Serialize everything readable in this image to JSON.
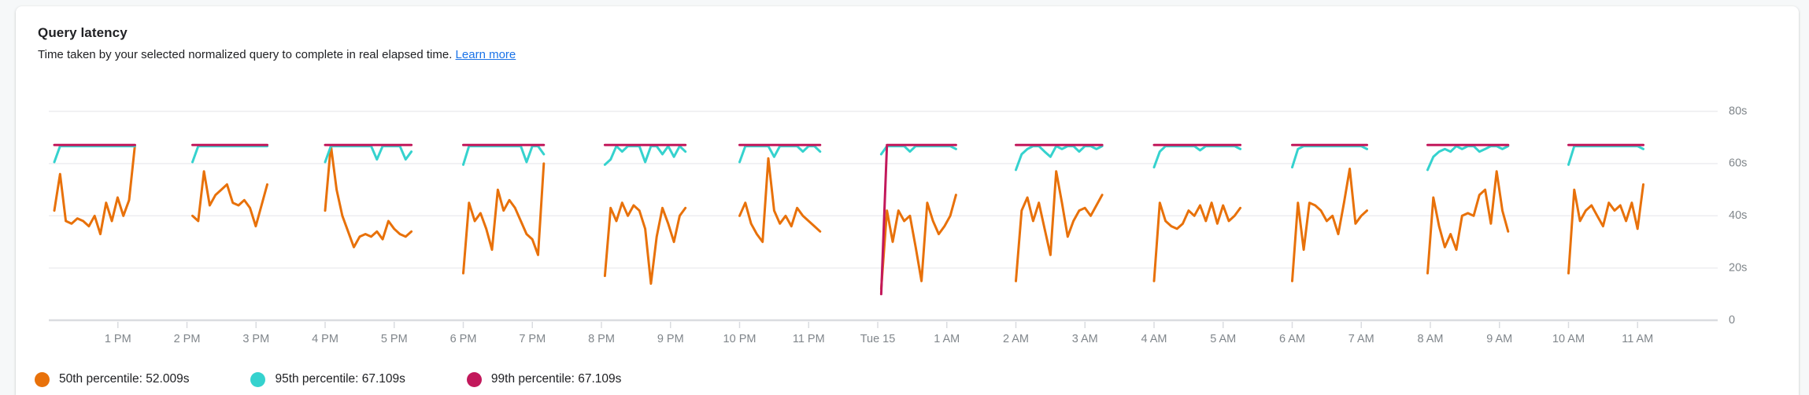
{
  "header": {
    "title": "Query latency",
    "subtitle": "Time taken by your selected normalized query to complete in real elapsed time.",
    "learn_more_label": "Learn more"
  },
  "legend": [
    {
      "label": "50th percentile: 52.009s",
      "color": "#E8710A"
    },
    {
      "label": "95th percentile: 67.109s",
      "color": "#35D2CE"
    },
    {
      "label": "99th percentile: 67.109s",
      "color": "#C2185B"
    }
  ],
  "colors": {
    "grid": "#ededf0",
    "axis_baseline": "#dadce0",
    "tick": "#dadce0",
    "tick_text": "#80868b"
  },
  "chart_data": {
    "type": "line",
    "title": "Query latency",
    "ylabel": "seconds",
    "ylim": [
      0,
      80
    ],
    "grid": true,
    "legend_position": "bottom",
    "yticks": [
      {
        "value": 80,
        "label": "80s"
      },
      {
        "value": 60,
        "label": "60s"
      },
      {
        "value": 40,
        "label": "40s"
      },
      {
        "value": 20,
        "label": "20s"
      },
      {
        "value": 0,
        "label": "0"
      }
    ],
    "x_unit": "hours after 12 PM",
    "x_range_hours": [
      0,
      24
    ],
    "xticks": [
      {
        "hour": 1,
        "label": "1 PM"
      },
      {
        "hour": 2,
        "label": "2 PM"
      },
      {
        "hour": 3,
        "label": "3 PM"
      },
      {
        "hour": 4,
        "label": "4 PM"
      },
      {
        "hour": 5,
        "label": "5 PM"
      },
      {
        "hour": 6,
        "label": "6 PM"
      },
      {
        "hour": 7,
        "label": "7 PM"
      },
      {
        "hour": 8,
        "label": "8 PM"
      },
      {
        "hour": 9,
        "label": "9 PM"
      },
      {
        "hour": 10,
        "label": "10 PM"
      },
      {
        "hour": 11,
        "label": "11 PM"
      },
      {
        "hour": 12,
        "label": "Tue 15"
      },
      {
        "hour": 13,
        "label": "1 AM"
      },
      {
        "hour": 14,
        "label": "2 AM"
      },
      {
        "hour": 15,
        "label": "3 AM"
      },
      {
        "hour": 16,
        "label": "4 AM"
      },
      {
        "hour": 17,
        "label": "5 AM"
      },
      {
        "hour": 18,
        "label": "6 AM"
      },
      {
        "hour": 19,
        "label": "7 AM"
      },
      {
        "hour": 20,
        "label": "8 AM"
      },
      {
        "hour": 21,
        "label": "9 AM"
      },
      {
        "hour": 22,
        "label": "10 AM"
      },
      {
        "hour": 23,
        "label": "11 AM"
      }
    ],
    "series": [
      {
        "name": "50th percentile",
        "current_value": "52.009s",
        "color": "#E8710A",
        "segments": [
          {
            "start_hour": 0.08,
            "step_hour": 0.0833,
            "values": [
              42,
              56,
              38,
              37,
              39,
              38,
              36,
              40,
              33,
              45,
              38,
              47,
              40,
              46,
              67
            ]
          },
          {
            "start_hour": 2.08,
            "step_hour": 0.0833,
            "values": [
              40,
              38,
              57,
              44,
              48,
              50,
              52,
              45,
              44,
              46,
              43,
              36,
              44,
              52
            ]
          },
          {
            "start_hour": 4.0,
            "step_hour": 0.0833,
            "values": [
              42,
              67,
              50,
              40,
              34,
              28,
              32,
              33,
              32,
              34,
              31,
              38,
              35,
              33,
              32,
              34
            ]
          },
          {
            "start_hour": 6.0,
            "step_hour": 0.0833,
            "values": [
              18,
              45,
              38,
              41,
              35,
              27,
              50,
              42,
              46,
              43,
              38,
              33,
              31,
              25,
              60
            ]
          },
          {
            "start_hour": 8.05,
            "step_hour": 0.0833,
            "values": [
              17,
              43,
              38,
              45,
              40,
              44,
              42,
              35,
              14,
              32,
              43,
              37,
              30,
              40,
              43
            ]
          },
          {
            "start_hour": 10.0,
            "step_hour": 0.0833,
            "values": [
              40,
              45,
              37,
              33,
              30,
              62,
              42,
              37,
              40,
              36,
              43,
              40,
              38,
              36,
              34
            ]
          },
          {
            "start_hour": 12.05,
            "step_hour": 0.0833,
            "values": [
              12,
              42,
              30,
              42,
              38,
              40,
              28,
              15,
              45,
              38,
              33,
              36,
              40,
              48
            ]
          },
          {
            "start_hour": 14.0,
            "step_hour": 0.0833,
            "values": [
              15,
              42,
              47,
              38,
              45,
              35,
              25,
              57,
              45,
              32,
              38,
              42,
              43,
              40,
              44,
              48
            ]
          },
          {
            "start_hour": 16.0,
            "step_hour": 0.0833,
            "values": [
              15,
              45,
              38,
              36,
              35,
              37,
              42,
              40,
              44,
              38,
              45,
              37,
              44,
              38,
              40,
              43
            ]
          },
          {
            "start_hour": 18.0,
            "step_hour": 0.0833,
            "values": [
              15,
              45,
              27,
              45,
              44,
              42,
              38,
              40,
              33,
              45,
              58,
              37,
              40,
              42
            ]
          },
          {
            "start_hour": 19.96,
            "step_hour": 0.0833,
            "values": [
              18,
              47,
              36,
              28,
              33,
              27,
              40,
              41,
              40,
              48,
              50,
              37,
              57,
              42,
              34
            ]
          },
          {
            "start_hour": 22.0,
            "step_hour": 0.0833,
            "values": [
              18,
              50,
              38,
              42,
              44,
              40,
              36,
              45,
              42,
              44,
              38,
              45,
              35,
              52
            ]
          }
        ]
      },
      {
        "name": "95th percentile",
        "current_value": "67.109s",
        "color": "#35D2CE",
        "segments": [
          {
            "start_hour": 0.08,
            "step_hour": 0.0833,
            "values": [
              61,
              67.1,
              67.1,
              67.1,
              67.1,
              67.1,
              67.1,
              67.1,
              67.1,
              67.1,
              67.1,
              67.1,
              67.1,
              67.1,
              67.1
            ]
          },
          {
            "start_hour": 2.08,
            "step_hour": 0.0833,
            "values": [
              61,
              67.1,
              67.1,
              67.1,
              67.1,
              67.1,
              67.1,
              67.1,
              67.1,
              67.1,
              67.1,
              67.1,
              67.1,
              67.1
            ]
          },
          {
            "start_hour": 4.0,
            "step_hour": 0.0833,
            "values": [
              61,
              67.1,
              67.1,
              67.1,
              67.1,
              67.1,
              67.1,
              67.1,
              67.1,
              62,
              67.1,
              67.1,
              67.1,
              67.1,
              62,
              65
            ]
          },
          {
            "start_hour": 6.0,
            "step_hour": 0.0833,
            "values": [
              60,
              67.1,
              67.1,
              67.1,
              67.1,
              67.1,
              67.1,
              67.1,
              67.1,
              67.1,
              67.1,
              61,
              67.1,
              67.1,
              64
            ]
          },
          {
            "start_hour": 8.05,
            "step_hour": 0.0833,
            "values": [
              60,
              62,
              67.1,
              65,
              67.1,
              67.1,
              67.1,
              61,
              67.1,
              67.1,
              64,
              67.1,
              63,
              67.1,
              65
            ]
          },
          {
            "start_hour": 10.0,
            "step_hour": 0.0833,
            "values": [
              61,
              67.1,
              67.1,
              67.1,
              67.1,
              67.1,
              63,
              67.1,
              67.1,
              67.1,
              67.1,
              65,
              67.1,
              67.1,
              65
            ]
          },
          {
            "start_hour": 12.05,
            "step_hour": 0.0833,
            "values": [
              64,
              67.1,
              67.1,
              67.1,
              67.1,
              65,
              67.1,
              67.1,
              67.1,
              67.1,
              67.1,
              67.1,
              67.1,
              66
            ]
          },
          {
            "start_hour": 14.0,
            "step_hour": 0.0833,
            "values": [
              58,
              64,
              66,
              67.1,
              67.1,
              65,
              63,
              67.1,
              66,
              67.1,
              67.1,
              65,
              67.1,
              67.1,
              66,
              67.1
            ]
          },
          {
            "start_hour": 16.0,
            "step_hour": 0.0833,
            "values": [
              59,
              65,
              67.1,
              67.1,
              67.1,
              67.1,
              67.1,
              67.1,
              65.5,
              67.1,
              67.1,
              67.1,
              67.1,
              67.1,
              67.1,
              66
            ]
          },
          {
            "start_hour": 18.0,
            "step_hour": 0.0833,
            "values": [
              59,
              66,
              67.1,
              67.1,
              67.1,
              67.1,
              67.1,
              67.1,
              67.1,
              67.1,
              67.1,
              67.1,
              67.1,
              66
            ]
          },
          {
            "start_hour": 19.96,
            "step_hour": 0.0833,
            "values": [
              58,
              63,
              65,
              66,
              65,
              67.1,
              66,
              67.1,
              67.1,
              65,
              66,
              67.1,
              67.1,
              66,
              67.1
            ]
          },
          {
            "start_hour": 22.0,
            "step_hour": 0.0833,
            "values": [
              60,
              67.1,
              67.1,
              67.1,
              67.1,
              67.1,
              67.1,
              67.1,
              67.1,
              67.1,
              67.1,
              67.1,
              67.1,
              66
            ]
          }
        ]
      },
      {
        "name": "99th percentile",
        "current_value": "67.109s",
        "color": "#C2185B",
        "segments": [
          {
            "start_hour": 0.08,
            "step_hour": 0.0833,
            "count": 15,
            "flat": 67.1
          },
          {
            "start_hour": 2.08,
            "step_hour": 0.0833,
            "count": 14,
            "flat": 67.1
          },
          {
            "start_hour": 4.0,
            "step_hour": 0.0833,
            "count": 16,
            "flat": 67.1
          },
          {
            "start_hour": 6.0,
            "step_hour": 0.0833,
            "count": 15,
            "flat": 67.1
          },
          {
            "start_hour": 8.05,
            "step_hour": 0.0833,
            "count": 15,
            "flat": 67.1
          },
          {
            "start_hour": 10.0,
            "step_hour": 0.0833,
            "count": 15,
            "flat": 67.1
          },
          {
            "start_hour": 12.05,
            "step_hour": 0.0833,
            "count": 14,
            "flat": 67.1,
            "first": 10
          },
          {
            "start_hour": 14.0,
            "step_hour": 0.0833,
            "count": 16,
            "flat": 67.1
          },
          {
            "start_hour": 16.0,
            "step_hour": 0.0833,
            "count": 16,
            "flat": 67.1
          },
          {
            "start_hour": 18.0,
            "step_hour": 0.0833,
            "count": 14,
            "flat": 67.1
          },
          {
            "start_hour": 19.96,
            "step_hour": 0.0833,
            "count": 15,
            "flat": 67.1
          },
          {
            "start_hour": 22.0,
            "step_hour": 0.0833,
            "count": 14,
            "flat": 67.1
          }
        ]
      }
    ]
  }
}
